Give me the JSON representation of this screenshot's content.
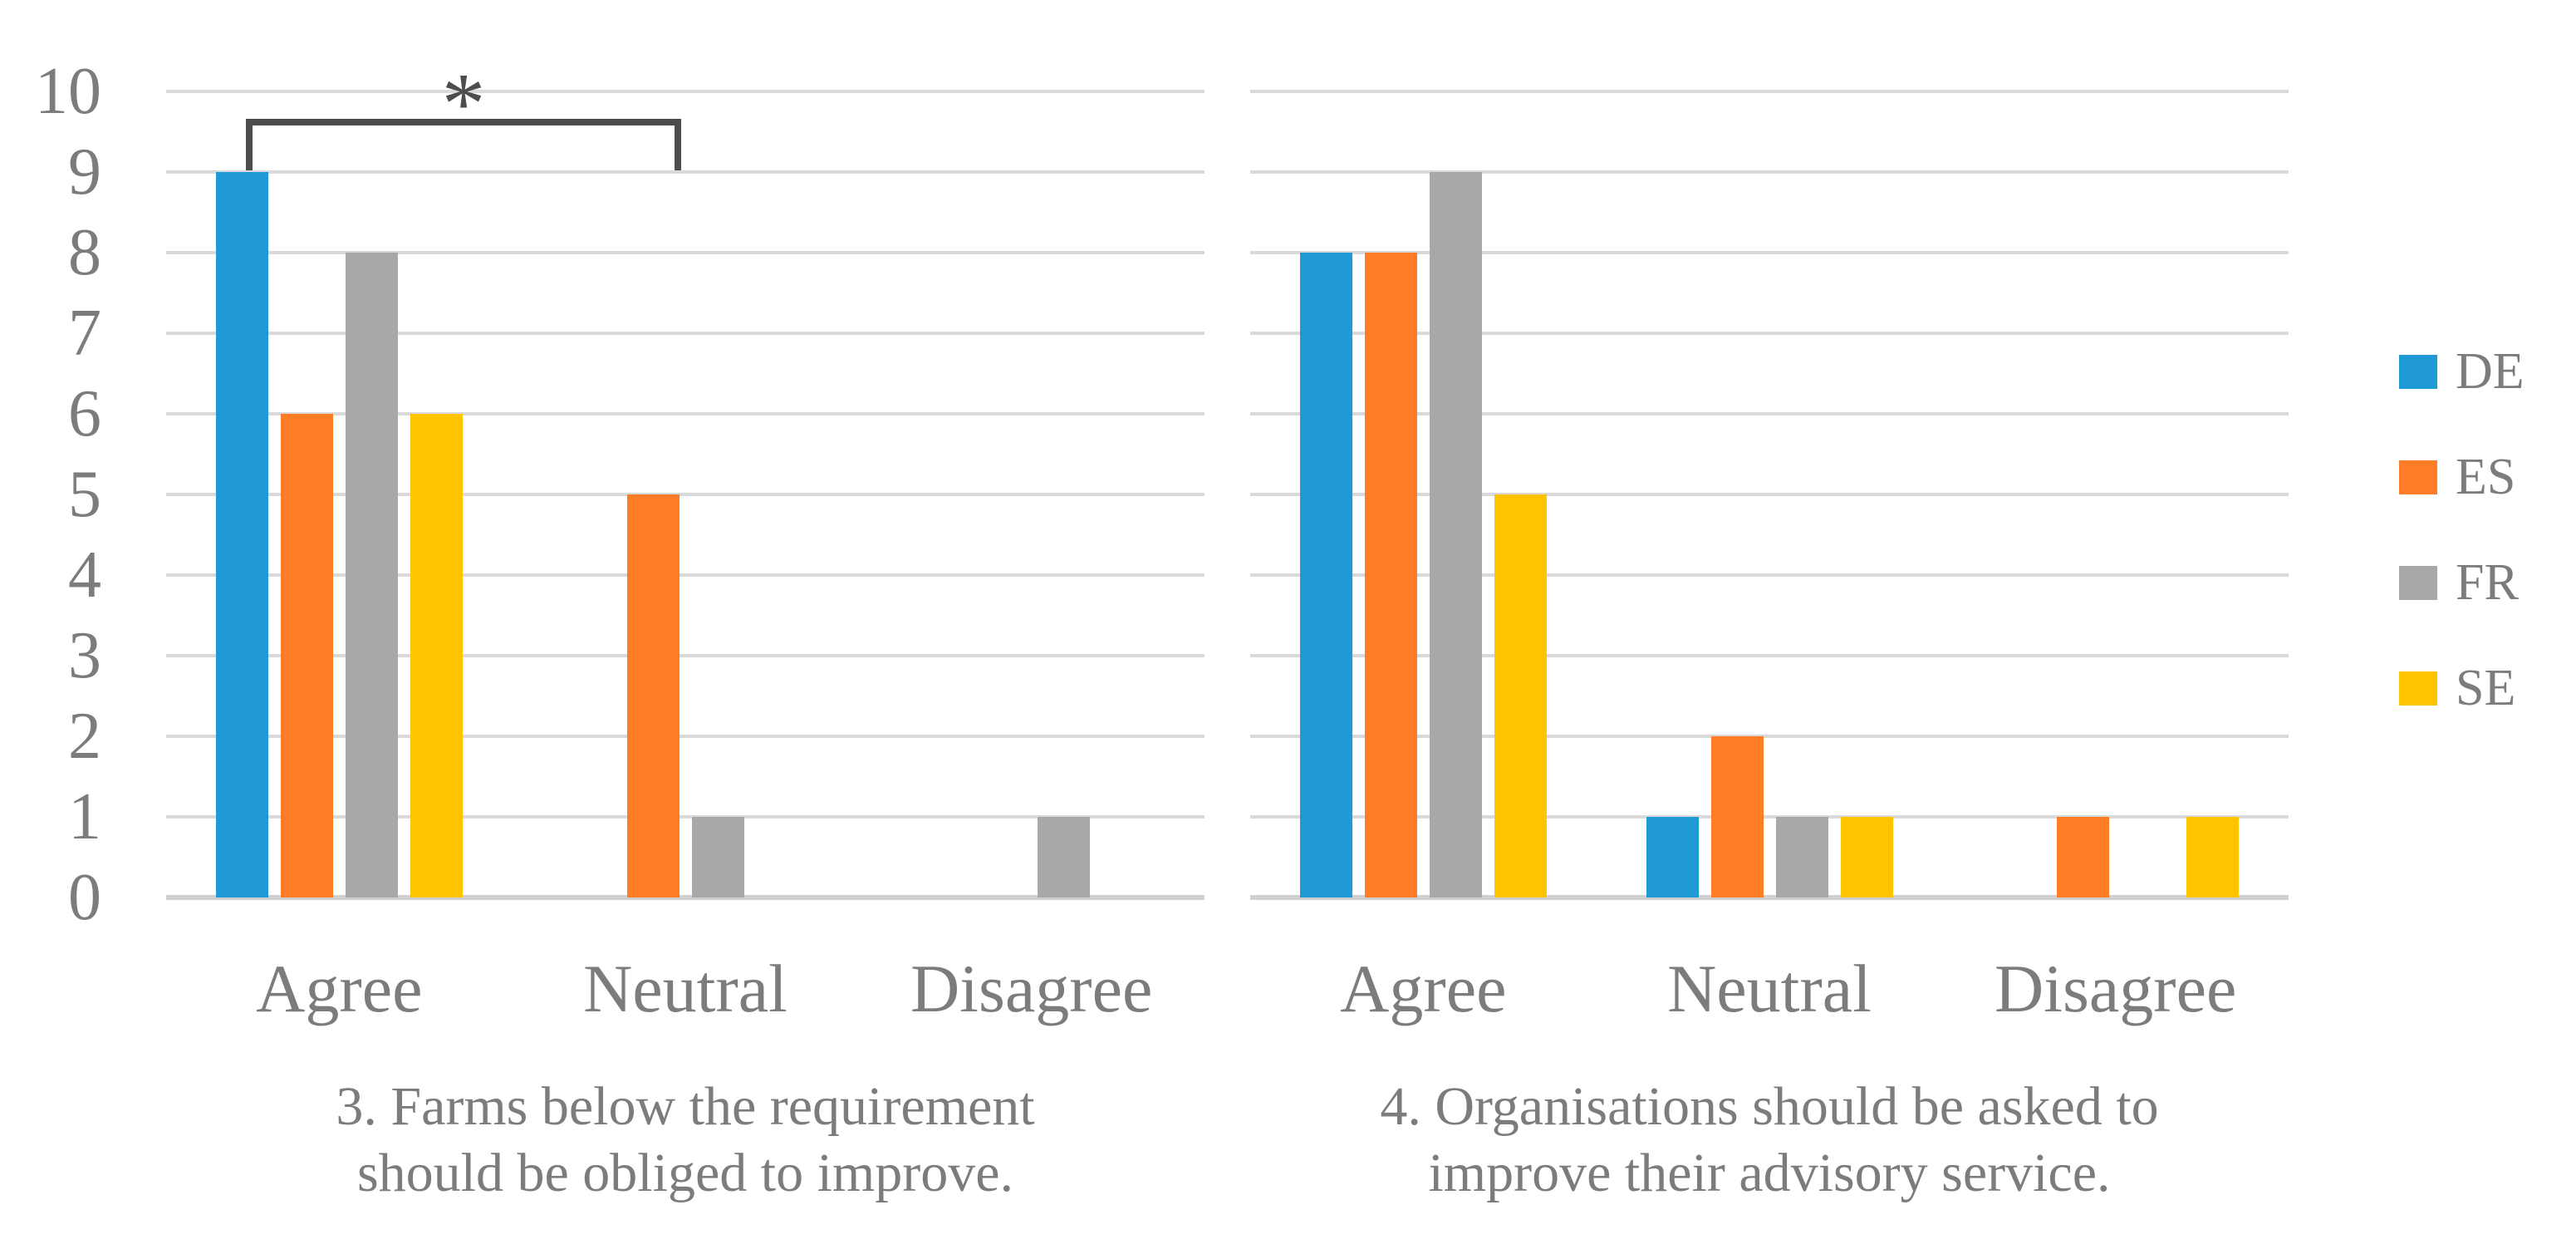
{
  "figure": {
    "type": "grouped-bar-chart-figure",
    "background": "#ffffff",
    "panels": 2
  },
  "colors": {
    "DE": "#1F9AD5",
    "ES": "#FC7D26",
    "FR": "#A8A8A8",
    "SE": "#FFC300",
    "gridline": "#D9D9D9",
    "axis_line": "#D0D0D0",
    "text": "#7C7C7C",
    "significance": "#4D4D4D"
  },
  "y_axis": {
    "ticks": [
      "10",
      "9",
      "8",
      "7",
      "6",
      "5",
      "4",
      "3",
      "2",
      "1",
      "0"
    ],
    "min": 0,
    "max": 10,
    "grid": "on"
  },
  "categories": [
    "Agree",
    "Neutral",
    "Disagree"
  ],
  "legend": {
    "position": "right",
    "items": [
      {
        "label": "DE",
        "color": "#1F9AD5"
      },
      {
        "label": "ES",
        "color": "#FC7D26"
      },
      {
        "label": "FR",
        "color": "#A8A8A8"
      },
      {
        "label": "SE",
        "color": "#FFC300"
      }
    ]
  },
  "significance": {
    "label": "*",
    "panel": "left",
    "from": "DE bar in Agree",
    "to": "ES bar in Neutral"
  },
  "captions": {
    "left": {
      "lines": [
        "3. Farms below the requirement",
        "should be obliged to improve."
      ]
    },
    "right": {
      "lines": [
        "4. Organisations should be asked to",
        "improve their advisory service."
      ]
    }
  },
  "chart_data": [
    {
      "type": "bar",
      "title": "3. Farms below the requirement should be obliged to improve.",
      "categories": [
        "Agree",
        "Neutral",
        "Disagree"
      ],
      "series": [
        {
          "name": "DE",
          "values": [
            9,
            0,
            0
          ]
        },
        {
          "name": "ES",
          "values": [
            6,
            5,
            0
          ]
        },
        {
          "name": "FR",
          "values": [
            8,
            1,
            1
          ]
        },
        {
          "name": "SE",
          "values": [
            6,
            0,
            0
          ]
        }
      ],
      "xlabel": "",
      "ylabel": "",
      "ylim": [
        0,
        10
      ],
      "grid": "on",
      "annotation": "* significance bracket between DE (Agree) and ES (Neutral)"
    },
    {
      "type": "bar",
      "title": "4. Organisations should be asked to improve their advisory service.",
      "categories": [
        "Agree",
        "Neutral",
        "Disagree"
      ],
      "series": [
        {
          "name": "DE",
          "values": [
            8,
            1,
            0
          ]
        },
        {
          "name": "ES",
          "values": [
            8,
            2,
            1
          ]
        },
        {
          "name": "FR",
          "values": [
            9,
            1,
            0
          ]
        },
        {
          "name": "SE",
          "values": [
            5,
            1,
            1
          ]
        }
      ],
      "xlabel": "",
      "ylabel": "",
      "ylim": [
        0,
        10
      ],
      "grid": "on"
    }
  ]
}
